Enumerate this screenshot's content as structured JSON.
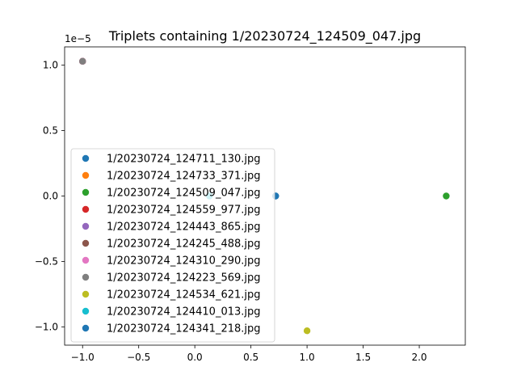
{
  "chart_data": {
    "type": "scatter",
    "title": "Triplets containing 1/20230724_124509_047.jpg",
    "xlabel": "",
    "ylabel": "",
    "y_offset_label": "1e−5",
    "xlim": [
      -1.16,
      2.41
    ],
    "ylim": [
      -1.14,
      1.14
    ],
    "y_scale_note": "y tick values are multiplied by 1e-5",
    "x_ticks": [
      {
        "value": -1.0,
        "label": "−1.0"
      },
      {
        "value": -0.5,
        "label": "−0.5"
      },
      {
        "value": 0.0,
        "label": "0.0"
      },
      {
        "value": 0.5,
        "label": "0.5"
      },
      {
        "value": 1.0,
        "label": "1.0"
      },
      {
        "value": 1.5,
        "label": "1.5"
      },
      {
        "value": 2.0,
        "label": "2.0"
      }
    ],
    "y_ticks": [
      {
        "value": -1.0,
        "label": "−1.0"
      },
      {
        "value": -0.5,
        "label": "−0.5"
      },
      {
        "value": 0.0,
        "label": "0.0"
      },
      {
        "value": 0.5,
        "label": "0.5"
      },
      {
        "value": 1.0,
        "label": "1.0"
      }
    ],
    "grid": false,
    "legend_position": "lower-left",
    "series": [
      {
        "name": "1/20230724_124711_130.jpg",
        "color": "#1f77b4",
        "x": [
          0.72
        ],
        "y": [
          0.0
        ]
      },
      {
        "name": "1/20230724_124733_371.jpg",
        "color": "#ff7f0e",
        "x": [
          -1.0
        ],
        "y": [
          1.03
        ]
      },
      {
        "name": "1/20230724_124509_047.jpg",
        "color": "#2ca02c",
        "x": [
          2.24
        ],
        "y": [
          0.0
        ]
      },
      {
        "name": "1/20230724_124559_977.jpg",
        "color": "#d62728",
        "x": [
          -1.0
        ],
        "y": [
          1.03
        ]
      },
      {
        "name": "1/20230724_124443_865.jpg",
        "color": "#9467bd",
        "x": [
          -1.0
        ],
        "y": [
          1.03
        ]
      },
      {
        "name": "1/20230724_124245_488.jpg",
        "color": "#8c564b",
        "x": [
          -1.0
        ],
        "y": [
          1.03
        ]
      },
      {
        "name": "1/20230724_124310_290.jpg",
        "color": "#e377c2",
        "x": [
          -1.0
        ],
        "y": [
          1.03
        ]
      },
      {
        "name": "1/20230724_124223_569.jpg",
        "color": "#7f7f7f",
        "x": [
          -1.0
        ],
        "y": [
          1.03
        ]
      },
      {
        "name": "1/20230724_124534_621.jpg",
        "color": "#bcbd22",
        "x": [
          1.0
        ],
        "y": [
          -1.03
        ]
      },
      {
        "name": "1/20230724_124410_013.jpg",
        "color": "#17becf",
        "x": [
          0.13
        ],
        "y": [
          0.0
        ]
      },
      {
        "name": "1/20230724_124341_218.jpg",
        "color": "#1f77b4",
        "x": [
          0.72
        ],
        "y": [
          0.0
        ]
      }
    ]
  }
}
